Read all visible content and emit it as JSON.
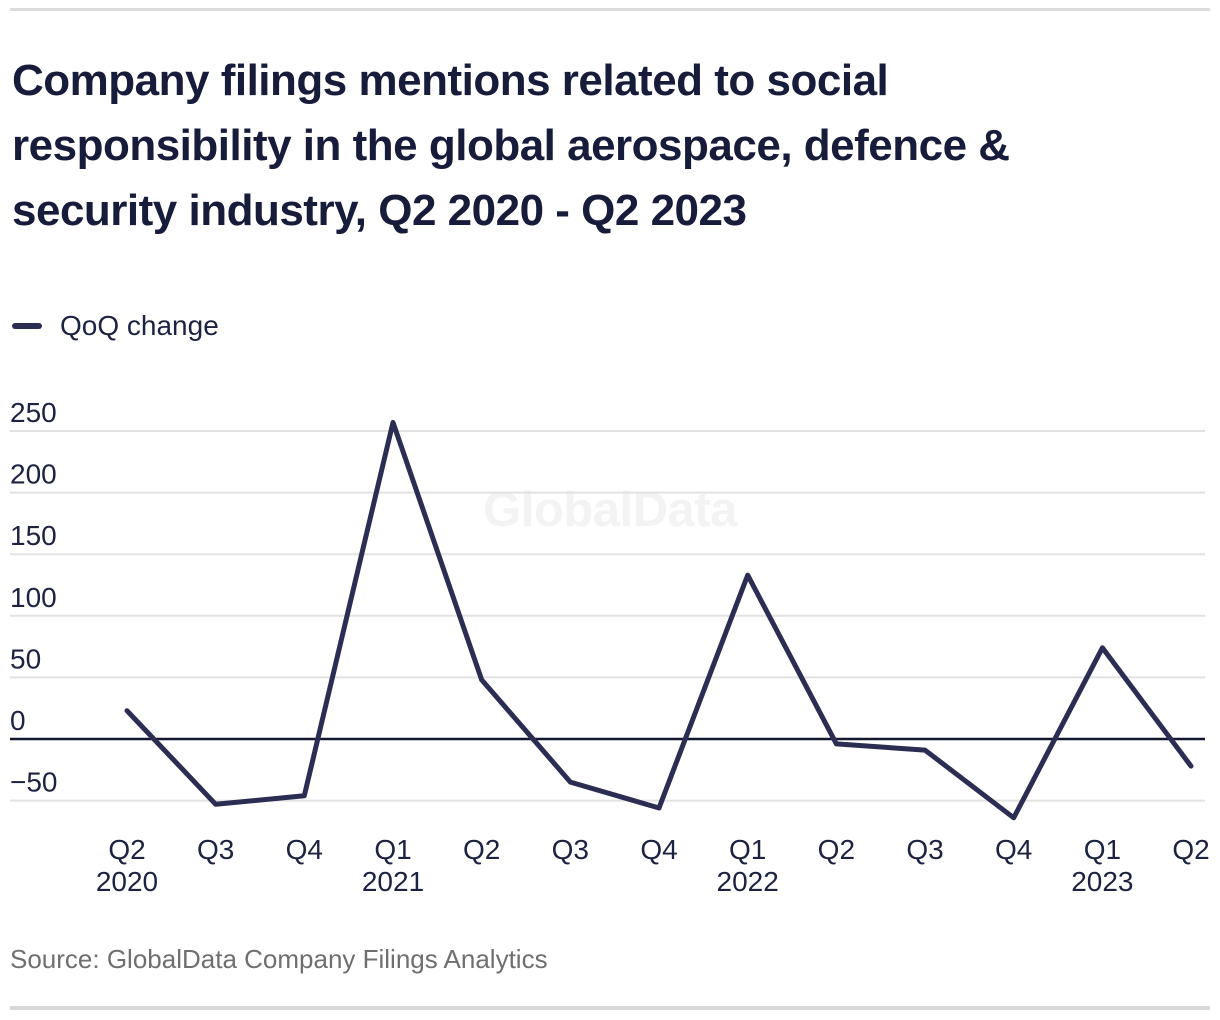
{
  "header": {
    "title": "Company filings mentions related to social responsibility in the global aerospace, defence & security industry, Q2 2020 - Q2 2023",
    "title_lines": [
      "Company filings mentions related to social",
      "responsibility in the global aerospace, defence &",
      "security industry, Q2 2020 - Q2 2023"
    ]
  },
  "legend": {
    "label": "QoQ change",
    "swatch_color": "#2b2e52"
  },
  "watermark": {
    "text": "GlobalData"
  },
  "footer": {
    "source": "Source: GlobalData Company Filings Analytics"
  },
  "chart_data": {
    "type": "line",
    "title": "Company filings mentions related to social responsibility in the global aerospace, defence & security industry, Q2 2020 - Q2 2023",
    "categories": [
      "Q2 2020",
      "Q3 2020",
      "Q4 2020",
      "Q1 2021",
      "Q2 2021",
      "Q3 2021",
      "Q4 2021",
      "Q1 2022",
      "Q2 2022",
      "Q3 2022",
      "Q4 2022",
      "Q1 2023",
      "Q2 2023"
    ],
    "series": [
      {
        "name": "QoQ change",
        "values": [
          23,
          -53,
          -46,
          257,
          48,
          -35,
          -56,
          133,
          -4,
          -9,
          -64,
          74,
          -22
        ]
      }
    ],
    "x_ticks": [
      {
        "quarter": "Q2",
        "year": "2020"
      },
      {
        "quarter": "Q3"
      },
      {
        "quarter": "Q4"
      },
      {
        "quarter": "Q1",
        "year": "2021"
      },
      {
        "quarter": "Q2"
      },
      {
        "quarter": "Q3"
      },
      {
        "quarter": "Q4"
      },
      {
        "quarter": "Q1",
        "year": "2022"
      },
      {
        "quarter": "Q2"
      },
      {
        "quarter": "Q3"
      },
      {
        "quarter": "Q4"
      },
      {
        "quarter": "Q1",
        "year": "2023"
      },
      {
        "quarter": "Q2"
      }
    ],
    "y_ticks": [
      {
        "label": "250",
        "value": 250
      },
      {
        "label": "200",
        "value": 200
      },
      {
        "label": "150",
        "value": 150
      },
      {
        "label": "100",
        "value": 100
      },
      {
        "label": "50",
        "value": 50
      },
      {
        "label": "0",
        "value": 0
      },
      {
        "label": "−50",
        "value": -50
      }
    ],
    "xlabel": "",
    "ylabel": "",
    "ylim": [
      -80,
      270
    ],
    "grid": true,
    "legend_position": "top-left",
    "colors": {
      "line": "#2b2e52",
      "zero_line": "#14182f",
      "gridline": "#e2e2e2",
      "tick_text": "#1d2240"
    }
  }
}
